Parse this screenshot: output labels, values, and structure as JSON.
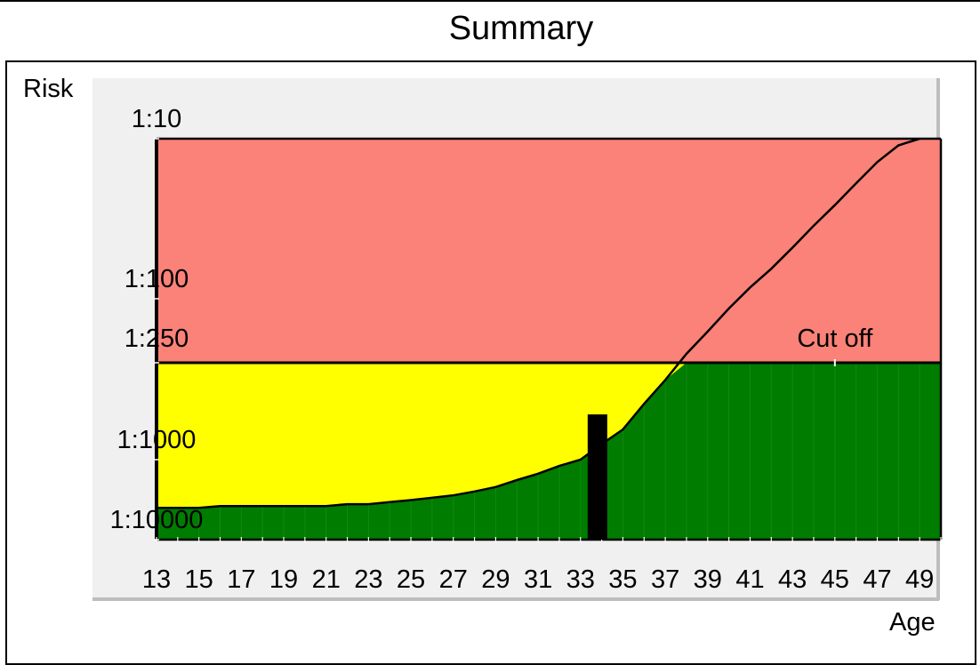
{
  "title": "Summary",
  "chart_data": {
    "type": "area",
    "title": "Summary",
    "xlabel": "Age",
    "ylabel": "Risk",
    "xlim": [
      13,
      50
    ],
    "y_ticks": [
      "1:10",
      "1:100",
      "1:250",
      "1:1000",
      "1:10000"
    ],
    "x_ticks": [
      13,
      15,
      17,
      19,
      21,
      23,
      25,
      27,
      29,
      31,
      33,
      35,
      37,
      39,
      41,
      43,
      45,
      47,
      49
    ],
    "cutoff": {
      "label": "Cut off",
      "risk": "1:250",
      "denominator": 250
    },
    "marker_age": 33.8,
    "risk_curve": {
      "age": [
        13,
        15,
        16,
        17,
        18,
        19,
        20,
        21,
        22,
        23,
        24,
        25,
        26,
        27,
        28,
        29,
        30,
        31,
        32,
        33,
        34,
        35,
        36,
        37,
        38,
        39,
        40,
        41,
        42,
        43,
        44,
        45,
        46,
        47,
        48,
        49
      ],
      "denominator": [
        4000,
        4000,
        3800,
        3800,
        3800,
        3800,
        3800,
        3800,
        3600,
        3600,
        3400,
        3200,
        3000,
        2800,
        2500,
        2200,
        1800,
        1500,
        1200,
        1000,
        800,
        650,
        450,
        320,
        220,
        160,
        115,
        85,
        65,
        48,
        35,
        26,
        19,
        14,
        11,
        9
      ]
    },
    "colors": {
      "high_risk": "#fa8278",
      "intermediate": "#ffff00",
      "low_risk": "#007c00",
      "plot_background": "#f0f0f0",
      "marker": "#000000"
    },
    "grid": false
  }
}
